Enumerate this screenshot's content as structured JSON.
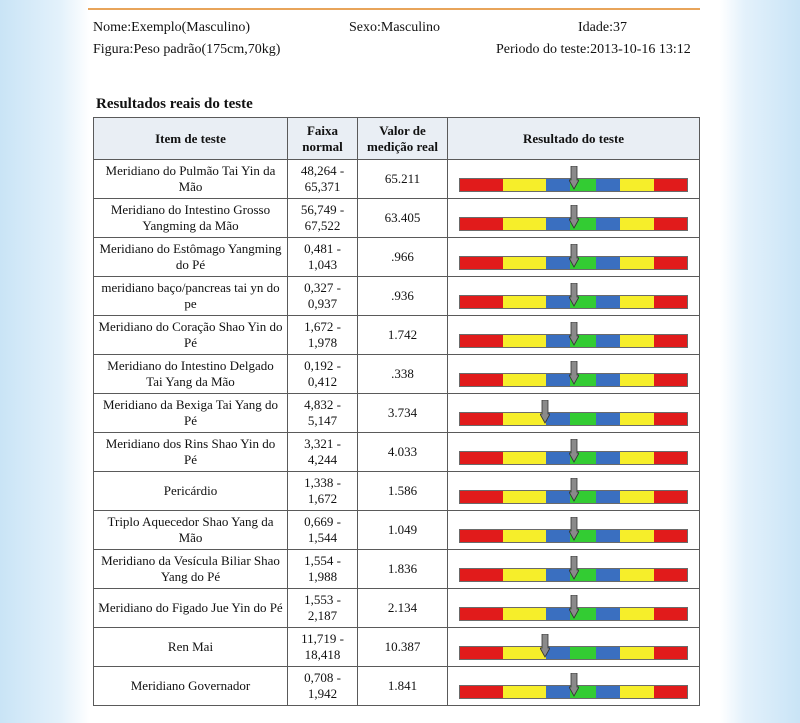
{
  "header": {
    "name": "Nome:Exemplo(Masculino)",
    "sex": "Sexo:Masculino",
    "age": "Idade:37",
    "figure": "Figura:Peso padrão(175cm,70kg)",
    "period": "Periodo do teste:2013-10-16 13:12"
  },
  "section_title": "Resultados reais do teste",
  "columns": [
    "Item de teste",
    "Faixa normal",
    "Valor de medição real",
    "Resultado do teste"
  ],
  "scale_colors": {
    "red": "#e11b1b",
    "yellow": "#f6ee2a",
    "blue": "#3a6fc0",
    "green": "#33cc33",
    "marker": "#8a8a8a"
  },
  "rows": [
    {
      "item": "Meridiano do Pulmão Tai Yin da Mão",
      "range": "48,264 - 65,371",
      "value": "65.211",
      "indicator": 0.5
    },
    {
      "item": "Meridiano do Intestino Grosso Yangming da Mão",
      "range": "56,749 - 67,522",
      "value": "63.405",
      "indicator": 0.5
    },
    {
      "item": "Meridiano do Estômago Yangming do Pé",
      "range": "0,481 - 1,043",
      "value": ".966",
      "indicator": 0.5
    },
    {
      "item": "meridiano baço/pancreas tai yn do pe",
      "range": "0,327 - 0,937",
      "value": ".936",
      "indicator": 0.5
    },
    {
      "item": "Meridiano do Coração Shao Yin do Pé",
      "range": "1,672 - 1,978",
      "value": "1.742",
      "indicator": 0.5
    },
    {
      "item": "Meridiano do Intestino Delgado Tai Yang da Mão",
      "range": "0,192 - 0,412",
      "value": ".338",
      "indicator": 0.5
    },
    {
      "item": "Meridiano da Bexiga Tai Yang do Pé",
      "range": "4,832 - 5,147",
      "value": "3.734",
      "indicator": 0.375
    },
    {
      "item": "Meridiano dos Rins Shao Yin do Pé",
      "range": "3,321 - 4,244",
      "value": "4.033",
      "indicator": 0.5
    },
    {
      "item": "Pericárdio",
      "range": "1,338 - 1,672",
      "value": "1.586",
      "indicator": 0.5
    },
    {
      "item": "Triplo Aquecedor Shao Yang da Mão",
      "range": "0,669 - 1,544",
      "value": "1.049",
      "indicator": 0.5
    },
    {
      "item": "Meridiano da Vesícula Biliar Shao Yang do Pé",
      "range": "1,554 - 1,988",
      "value": "1.836",
      "indicator": 0.5
    },
    {
      "item": "Meridiano do Figado Jue Yin do Pé",
      "range": "1,553 - 2,187",
      "value": "2.134",
      "indicator": 0.5
    },
    {
      "item": "Ren Mai",
      "range": "11,719 - 18,418",
      "value": "10.387",
      "indicator": 0.375
    },
    {
      "item": "Meridiano Governador",
      "range": "0,708 - 1,942",
      "value": "1.841",
      "indicator": 0.5
    }
  ]
}
